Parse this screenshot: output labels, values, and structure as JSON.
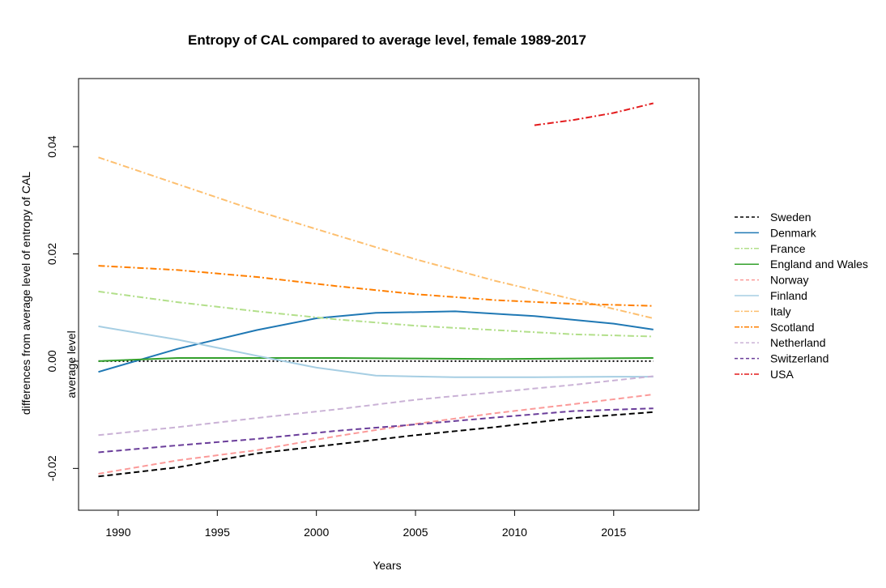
{
  "chart_data": {
    "type": "line",
    "title": "Entropy of CAL compared to average level, female 1989-2017",
    "xlabel": "Years",
    "ylabel": "differences from average level of entropy of CAL",
    "xlim": [
      1988,
      2019.3
    ],
    "ylim": [
      -0.0278,
      0.0527
    ],
    "x_ticks": [
      1990,
      1995,
      2000,
      2005,
      2010,
      2015
    ],
    "y_ticks": [
      -0.02,
      0.0,
      0.02,
      0.04
    ],
    "y_tick_labels": [
      "-0.02",
      "0.00",
      "0.02",
      "0.04"
    ],
    "grid": false,
    "legend_position": "right",
    "reference_line": {
      "y": 0.0,
      "label": "average level",
      "color": "#000000",
      "style": "dotted"
    },
    "series": [
      {
        "name": "Sweden",
        "color": "#000000",
        "dash": "dashed",
        "x": [
          1989,
          1993,
          1997,
          2001,
          2005,
          2009,
          2013,
          2017
        ],
        "y": [
          -0.0215,
          -0.0198,
          -0.0172,
          -0.0155,
          -0.0138,
          -0.0123,
          -0.0106,
          -0.0095
        ]
      },
      {
        "name": "Denmark",
        "color": "#1f78b4",
        "dash": "solid",
        "x": [
          1989,
          1993,
          1997,
          2000,
          2003,
          2007,
          2011,
          2015,
          2017
        ],
        "y": [
          -0.002,
          0.0023,
          0.0058,
          0.008,
          0.009,
          0.0093,
          0.0084,
          0.007,
          0.0059
        ]
      },
      {
        "name": "France",
        "color": "#b2df8a",
        "dash": "dotdash",
        "x": [
          1989,
          1993,
          1997,
          2001,
          2005,
          2009,
          2013,
          2017
        ],
        "y": [
          0.013,
          0.011,
          0.0093,
          0.0078,
          0.0066,
          0.0058,
          0.005,
          0.0046
        ]
      },
      {
        "name": "England and Wales",
        "color": "#33a02c",
        "dash": "solid",
        "x": [
          1989,
          1993,
          1997,
          2001,
          2005,
          2009,
          2013,
          2017
        ],
        "y": [
          0.0,
          0.0006,
          0.0006,
          0.0006,
          0.0005,
          0.0004,
          0.0005,
          0.0006
        ]
      },
      {
        "name": "Norway",
        "color": "#fb9a99",
        "dash": "dashed",
        "x": [
          1989,
          1993,
          1997,
          2001,
          2005,
          2009,
          2013,
          2017
        ],
        "y": [
          -0.021,
          -0.0185,
          -0.0166,
          -0.014,
          -0.0117,
          -0.0097,
          -0.008,
          -0.0062
        ]
      },
      {
        "name": "Finland",
        "color": "#a6cee3",
        "dash": "solid",
        "x": [
          1989,
          1993,
          1997,
          2000,
          2003,
          2007,
          2011,
          2015,
          2017
        ],
        "y": [
          0.0065,
          0.004,
          0.001,
          -0.0012,
          -0.0027,
          -0.003,
          -0.003,
          -0.0029,
          -0.0029
        ]
      },
      {
        "name": "Italy",
        "color": "#fdbf6f",
        "dash": "dotdash",
        "x": [
          1989,
          1993,
          1997,
          2001,
          2005,
          2009,
          2013,
          2017
        ],
        "y": [
          0.038,
          0.033,
          0.028,
          0.0235,
          0.019,
          0.015,
          0.0115,
          0.008
        ]
      },
      {
        "name": "Scotland",
        "color": "#ff7f00",
        "dash": "dotdash",
        "x": [
          1989,
          1993,
          1997,
          2001,
          2005,
          2009,
          2013,
          2017
        ],
        "y": [
          0.0178,
          0.017,
          0.0157,
          0.014,
          0.0125,
          0.0114,
          0.0107,
          0.0103
        ]
      },
      {
        "name": "Netherland",
        "color": "#cab2d6",
        "dash": "dashed",
        "x": [
          1989,
          1993,
          1997,
          2001,
          2005,
          2009,
          2013,
          2017
        ],
        "y": [
          -0.0138,
          -0.0123,
          -0.0106,
          -0.009,
          -0.0072,
          -0.0058,
          -0.0044,
          -0.0028
        ]
      },
      {
        "name": "Switzerland",
        "color": "#6a3d9a",
        "dash": "dashed",
        "x": [
          1989,
          1993,
          1997,
          2001,
          2005,
          2009,
          2013,
          2017
        ],
        "y": [
          -0.017,
          -0.0157,
          -0.0145,
          -0.013,
          -0.0118,
          -0.0105,
          -0.0093,
          -0.0088
        ]
      },
      {
        "name": "USA",
        "color": "#e31a1c",
        "dash": "dotdash",
        "x": [
          2011,
          2013,
          2015,
          2017
        ],
        "y": [
          0.044,
          0.045,
          0.0463,
          0.0481
        ]
      }
    ]
  }
}
